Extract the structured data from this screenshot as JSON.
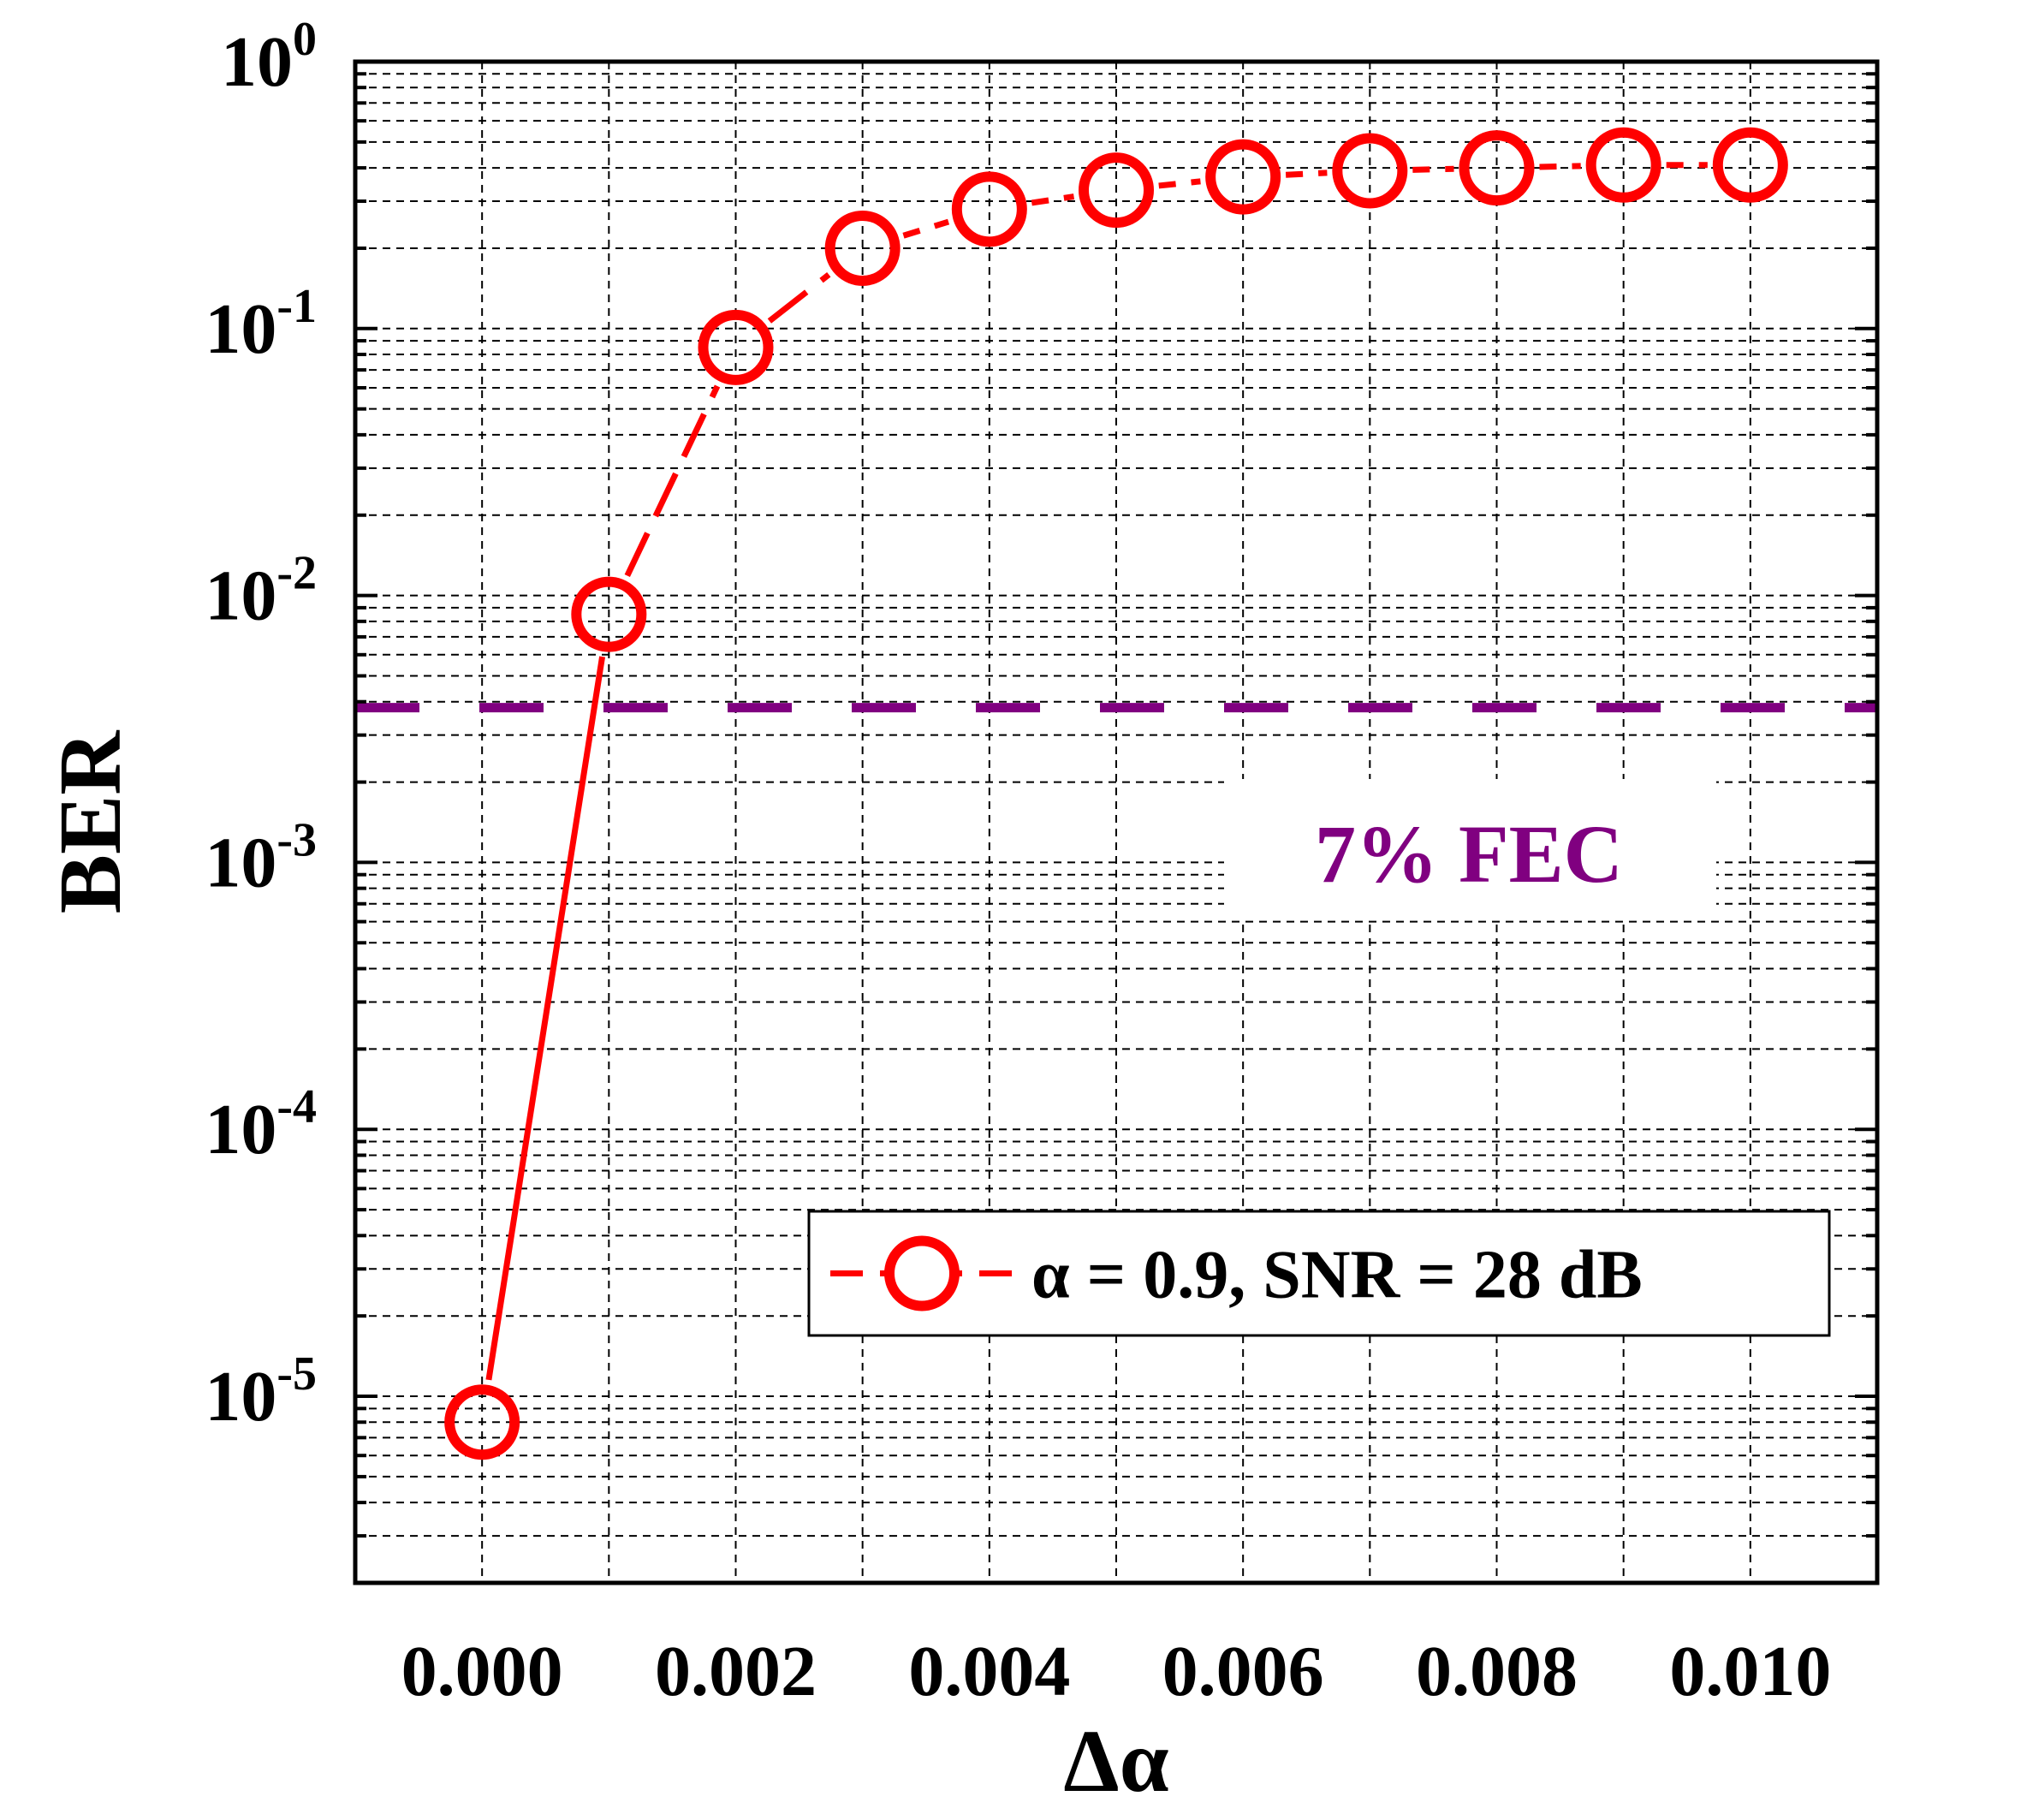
{
  "chart_data": {
    "type": "line",
    "xlabel": "Δα",
    "ylabel": "BER",
    "xlim": [
      -0.001,
      0.011
    ],
    "ylim": [
      2e-06,
      1
    ],
    "yscale": "log",
    "grid": true,
    "x_ticks": [
      0.0,
      0.002,
      0.004,
      0.006,
      0.008,
      0.01
    ],
    "x_tick_labels": [
      "0.000",
      "0.002",
      "0.004",
      "0.006",
      "0.008",
      "0.010"
    ],
    "y_ticks": [
      {
        "value": 1.0,
        "base": "10",
        "exp": "0"
      },
      {
        "value": 0.1,
        "base": "10",
        "exp": "-1"
      },
      {
        "value": 0.01,
        "base": "10",
        "exp": "-2"
      },
      {
        "value": 0.001,
        "base": "10",
        "exp": "-3"
      },
      {
        "value": 0.0001,
        "base": "10",
        "exp": "-4"
      },
      {
        "value": 1e-05,
        "base": "10",
        "exp": "-5"
      }
    ],
    "series": [
      {
        "name": "α = 0.9, SNR = 28 dB",
        "color": "#ff0000",
        "marker": "open-circle",
        "x": [
          0.0,
          0.001,
          0.002,
          0.003,
          0.004,
          0.005,
          0.006,
          0.007,
          0.008,
          0.009,
          0.01
        ],
        "y": [
          8e-06,
          0.0085,
          0.085,
          0.2,
          0.28,
          0.33,
          0.37,
          0.39,
          0.4,
          0.41,
          0.41
        ]
      }
    ],
    "threshold": {
      "value": 0.0038,
      "color": "#800080",
      "label": "7% FEC"
    },
    "legend_position": "lower-right"
  }
}
